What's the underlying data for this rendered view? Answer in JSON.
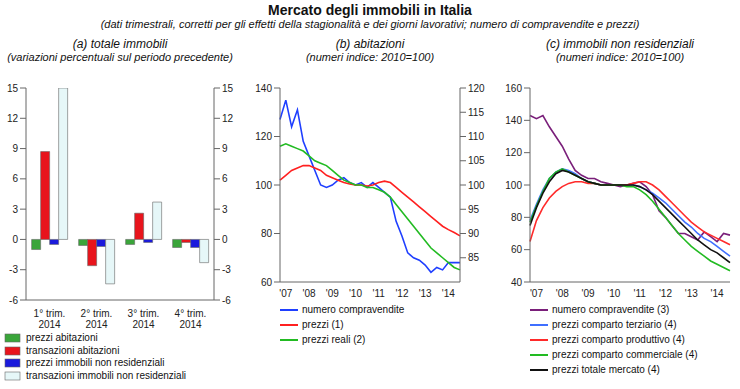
{
  "title": "Mercato degli immobili in Italia",
  "subtitle": "(dati trimestrali, corretti per gli effetti della stagionalità e dei giorni lavorativi; numero di compravendite e prezzi)",
  "chart_data": [
    {
      "type": "bar",
      "title": "(a) totale immobili",
      "subtitle": "(variazioni percentuali sul periodo precedente)",
      "categories": [
        "1° trim. 2014",
        "2° trim. 2014",
        "3° trim. 2014",
        "4° trim. 2014"
      ],
      "series": [
        {
          "name": "prezzi abitazioni",
          "color": "#3aa53a",
          "values": [
            -1.0,
            -0.6,
            -0.5,
            -0.8
          ]
        },
        {
          "name": "transazioni abitazioni",
          "color": "#e8141c",
          "values": [
            8.7,
            -2.6,
            2.6,
            -0.3
          ]
        },
        {
          "name": "prezzi immobili non residenziali",
          "color": "#1a1adc",
          "values": [
            -0.5,
            -0.7,
            -0.3,
            -0.8
          ]
        },
        {
          "name": "transazioni immobili non residenziali",
          "color": "#e6f7f8",
          "values": [
            15.0,
            -4.4,
            3.7,
            -2.3
          ]
        }
      ],
      "ylim": [
        -6,
        15
      ],
      "yticks": [
        -6,
        -3,
        0,
        3,
        6,
        9,
        12,
        15
      ],
      "y2lim": [
        -6,
        15
      ],
      "y2ticks": [
        -6,
        -3,
        0,
        3,
        6,
        9,
        12,
        15
      ],
      "legend": "bottom"
    },
    {
      "type": "line",
      "title": "(b) abitazioni",
      "subtitle": "(numeri indice: 2010=100)",
      "categories": [
        null,
        "'07",
        null,
        null,
        null,
        "'08",
        null,
        null,
        null,
        "'09",
        null,
        null,
        null,
        "'10",
        null,
        null,
        null,
        "'11",
        null,
        null,
        null,
        "'12",
        null,
        null,
        null,
        "'13",
        null,
        null,
        null,
        "'14",
        null,
        null
      ],
      "series": [
        {
          "name": "numero compravendite",
          "color": "#1f3fff",
          "values": [
            127,
            135,
            124,
            131,
            118,
            112,
            106,
            100,
            99,
            100,
            102,
            103,
            101,
            100,
            101,
            99,
            101,
            99,
            97,
            95,
            85,
            79,
            72,
            70,
            69,
            67,
            64,
            66,
            65,
            68,
            68,
            68
          ]
        },
        {
          "name": "prezzi (1)",
          "color": "#ff2020",
          "axis": "y2",
          "values": [
            101,
            102,
            103,
            103.5,
            104,
            104,
            103.5,
            103,
            102,
            101.5,
            101,
            100.5,
            100.2,
            100,
            100,
            99.8,
            100,
            100.5,
            100.8,
            100.5,
            99.5,
            98.5,
            97.5,
            96.5,
            95.5,
            94.5,
            93.5,
            92.5,
            91.5,
            90.8,
            90.2,
            89.5
          ]
        },
        {
          "name": "prezzi reali (2)",
          "color": "#22bb22",
          "axis": "y2",
          "values": [
            108,
            108.5,
            108,
            107.5,
            107,
            106,
            105,
            104.5,
            104,
            103,
            102,
            101,
            100.5,
            100,
            100,
            99.5,
            99.5,
            99,
            98.5,
            97.5,
            96,
            94.5,
            93,
            91.5,
            90,
            88.5,
            87,
            86,
            85,
            84,
            83,
            82.5
          ]
        }
      ],
      "ylim": [
        60,
        140
      ],
      "yticks": [
        60,
        80,
        100,
        120,
        140
      ],
      "y2lim": [
        80,
        120
      ],
      "y2ticks": [
        85,
        90,
        95,
        100,
        105,
        110,
        115,
        120
      ],
      "legend": "bottom"
    },
    {
      "type": "line",
      "title": "(c) immobili non residenziali",
      "subtitle": "(numeri indice: 2010=100)",
      "categories": [
        null,
        "'07",
        null,
        null,
        null,
        "'08",
        null,
        null,
        null,
        "'09",
        null,
        null,
        null,
        "'10",
        null,
        null,
        null,
        "'11",
        null,
        null,
        null,
        "'12",
        null,
        null,
        null,
        "'13",
        null,
        null,
        null,
        "'14",
        null,
        null
      ],
      "series": [
        {
          "name": "numero compravendite (3)",
          "color": "#7a1f7a",
          "values": [
            143,
            141,
            143,
            136,
            130,
            124,
            116,
            109,
            106,
            104,
            104,
            102,
            101,
            100,
            99,
            100,
            101,
            102,
            99,
            94,
            84,
            80,
            75,
            70,
            70,
            68,
            66,
            71,
            68,
            65,
            70,
            69
          ]
        },
        {
          "name": "prezzi comparto terziario (4)",
          "color": "#3f6fff",
          "values": [
            78,
            88,
            97,
            104,
            108,
            110,
            109,
            107,
            104,
            102,
            101,
            100,
            100,
            100,
            100,
            100,
            100,
            99,
            97,
            95,
            92,
            89,
            85,
            81,
            77,
            74,
            70,
            67,
            65,
            62,
            59,
            56
          ]
        },
        {
          "name": "prezzi comparto produttivo (4)",
          "color": "#ff2a2a",
          "values": [
            65,
            78,
            86,
            92,
            96,
            99,
            101,
            102,
            102,
            101,
            101,
            100,
            100,
            100,
            100,
            100,
            101,
            102,
            102,
            100,
            97,
            93,
            89,
            85,
            81,
            77,
            74,
            71,
            69,
            67,
            65,
            63
          ]
        },
        {
          "name": "prezzi comparto commerciale (4)",
          "color": "#22bb22",
          "values": [
            77,
            87,
            96,
            104,
            108,
            110,
            108,
            106,
            104,
            102,
            101,
            100,
            100,
            100,
            100,
            99,
            99,
            97,
            94,
            90,
            85,
            80,
            75,
            70,
            66,
            62,
            59,
            56,
            53,
            51,
            49,
            47
          ]
        },
        {
          "name": "prezzi totale mercato (4)",
          "color": "#111111",
          "values": [
            75,
            86,
            95,
            102,
            107,
            109,
            108,
            106,
            104,
            102,
            101,
            100,
            100,
            100,
            100,
            100,
            100,
            99,
            97,
            94,
            90,
            86,
            82,
            78,
            74,
            70,
            66,
            63,
            60,
            58,
            55,
            52
          ]
        }
      ],
      "ylim": [
        40,
        160
      ],
      "yticks": [
        40,
        60,
        80,
        100,
        120,
        140,
        160
      ],
      "legend": "bottom"
    }
  ]
}
